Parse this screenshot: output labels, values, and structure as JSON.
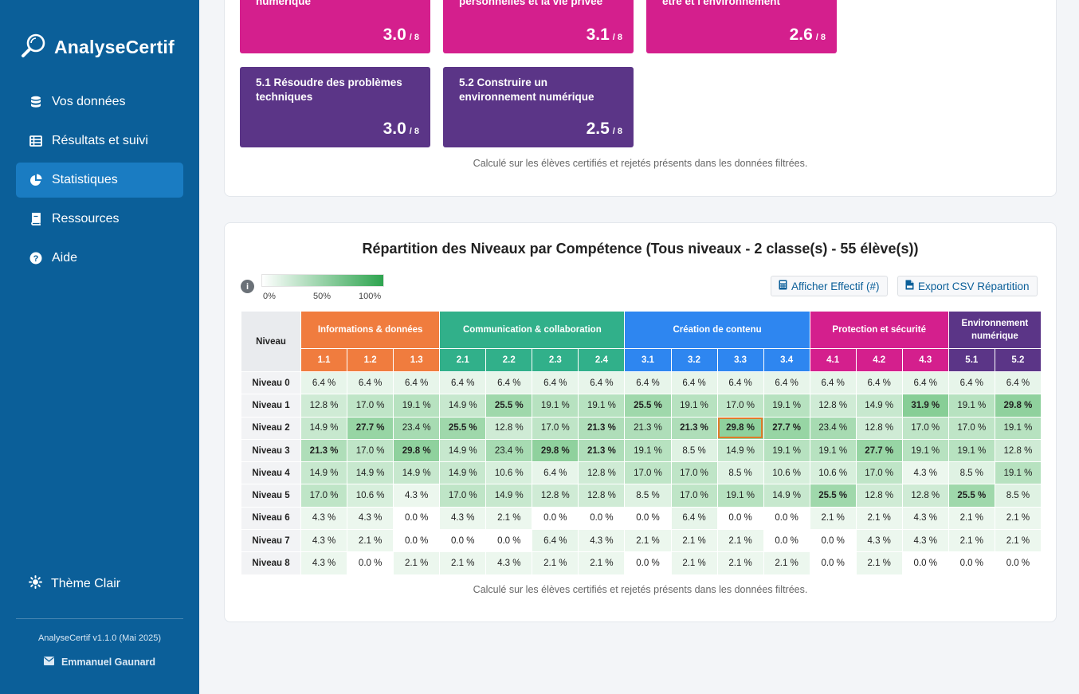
{
  "sidebar": {
    "brand": "AnalyseCertif",
    "nav": [
      {
        "label": "Vos données",
        "icon": "database-icon"
      },
      {
        "label": "Résultats et suivi",
        "icon": "table-icon"
      },
      {
        "label": "Statistiques",
        "icon": "pie-chart-icon",
        "active": true
      },
      {
        "label": "Ressources",
        "icon": "book-icon"
      },
      {
        "label": "Aide",
        "icon": "question-circle-icon"
      }
    ],
    "theme_label": "Thème Clair",
    "version": "AnalyseCertif v1.1.0 (Mai 2025)",
    "author": "Emmanuel Gaunard"
  },
  "tiles_top": [
    {
      "label": "numérique",
      "value": "3.0",
      "max": "/ 8",
      "color": "#d41f8d"
    },
    {
      "label": "personnelles et la vie privée",
      "value": "3.1",
      "max": "/ 8",
      "color": "#d41f8d"
    },
    {
      "label": "être et l'environnement",
      "value": "2.6",
      "max": "/ 8",
      "color": "#d41f8d"
    }
  ],
  "tiles_bottom": [
    {
      "label": "5.1 Résoudre des problèmes techniques",
      "value": "3.0",
      "max": "/ 8",
      "color": "#5b3587"
    },
    {
      "label": "5.2 Construire un environnement numérique",
      "value": "2.5",
      "max": "/ 8",
      "color": "#5b3587"
    }
  ],
  "footnote": "Calculé sur les élèves certifiés et rejetés présents dans les données filtrées.",
  "repartition": {
    "title": "Répartition des Niveaux par Compétence (Tous niveaux - 2 classe(s) - 55 élève(s))",
    "info_icon": "i",
    "legend": {
      "min": "0%",
      "mid": "50%",
      "max": "100%",
      "color_low": "#ffffff",
      "color_high": "#2ea44f"
    },
    "buttons": {
      "effectif": "Afficher Effectif (#)",
      "export": "Export CSV Répartition"
    },
    "niveau_header": "Niveau",
    "groups": [
      {
        "name": "Informations & données",
        "color": "#f07c3e",
        "sub": [
          "1.1",
          "1.2",
          "1.3"
        ]
      },
      {
        "name": "Communication & collaboration",
        "color": "#31b08a",
        "sub": [
          "2.1",
          "2.2",
          "2.3",
          "2.4"
        ]
      },
      {
        "name": "Création de contenu",
        "color": "#2e86f0",
        "sub": [
          "3.1",
          "3.2",
          "3.3",
          "3.4"
        ]
      },
      {
        "name": "Protection et sécurité",
        "color": "#d41f8d",
        "sub": [
          "4.1",
          "4.2",
          "4.3"
        ]
      },
      {
        "name": "Environnement numérique",
        "color": "#5b3587",
        "sub": [
          "5.1",
          "5.2"
        ]
      }
    ],
    "highlight": {
      "row": 2,
      "col": 9
    },
    "rows": [
      {
        "label": "Niveau 0",
        "values": [
          6.4,
          6.4,
          6.4,
          6.4,
          6.4,
          6.4,
          6.4,
          6.4,
          6.4,
          6.4,
          6.4,
          6.4,
          6.4,
          6.4,
          6.4,
          6.4
        ]
      },
      {
        "label": "Niveau 1",
        "values": [
          12.8,
          17.0,
          19.1,
          14.9,
          25.5,
          19.1,
          19.1,
          25.5,
          19.1,
          17.0,
          19.1,
          12.8,
          14.9,
          31.9,
          19.1,
          29.8
        ]
      },
      {
        "label": "Niveau 2",
        "values": [
          14.9,
          27.7,
          23.4,
          25.5,
          12.8,
          17.0,
          21.3,
          21.3,
          21.3,
          29.8,
          27.7,
          23.4,
          12.8,
          17.0,
          17.0,
          19.1
        ]
      },
      {
        "label": "Niveau 3",
        "values": [
          21.3,
          17.0,
          29.8,
          14.9,
          23.4,
          29.8,
          21.3,
          19.1,
          8.5,
          14.9,
          19.1,
          19.1,
          27.7,
          19.1,
          19.1,
          12.8
        ]
      },
      {
        "label": "Niveau 4",
        "values": [
          14.9,
          14.9,
          14.9,
          14.9,
          10.6,
          6.4,
          12.8,
          17.0,
          17.0,
          8.5,
          10.6,
          10.6,
          17.0,
          4.3,
          8.5,
          19.1
        ]
      },
      {
        "label": "Niveau 5",
        "values": [
          17.0,
          10.6,
          4.3,
          17.0,
          14.9,
          12.8,
          12.8,
          8.5,
          17.0,
          19.1,
          14.9,
          25.5,
          12.8,
          12.8,
          25.5,
          8.5
        ]
      },
      {
        "label": "Niveau 6",
        "values": [
          4.3,
          4.3,
          0.0,
          4.3,
          2.1,
          0.0,
          0.0,
          0.0,
          6.4,
          0.0,
          0.0,
          2.1,
          2.1,
          4.3,
          2.1,
          2.1
        ]
      },
      {
        "label": "Niveau 7",
        "values": [
          4.3,
          2.1,
          0.0,
          0.0,
          0.0,
          6.4,
          4.3,
          2.1,
          2.1,
          2.1,
          0.0,
          0.0,
          4.3,
          4.3,
          2.1,
          2.1
        ]
      },
      {
        "label": "Niveau 8",
        "values": [
          4.3,
          0.0,
          2.1,
          2.1,
          4.3,
          2.1,
          2.1,
          0.0,
          2.1,
          2.1,
          2.1,
          0.0,
          2.1,
          0.0,
          0.0,
          0.0
        ]
      }
    ]
  }
}
